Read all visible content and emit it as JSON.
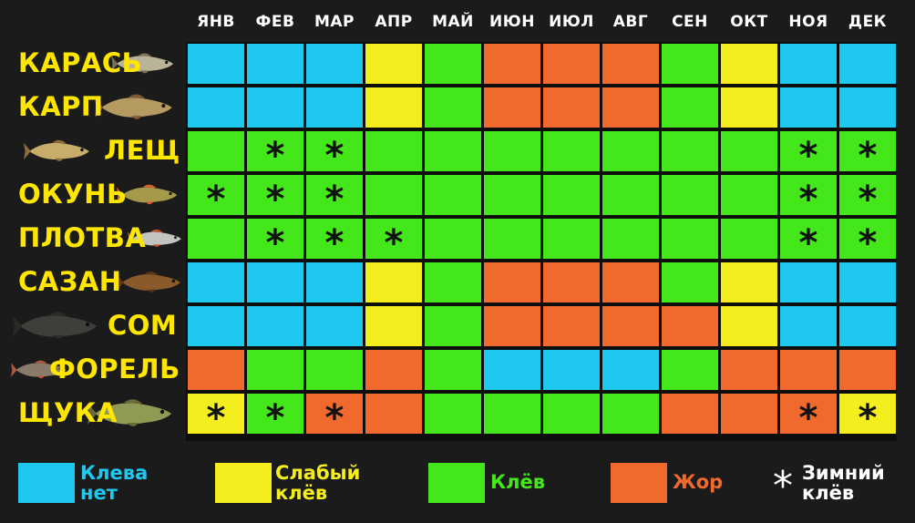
{
  "chart_data": {
    "type": "table",
    "title": "",
    "months": [
      "ЯНВ",
      "ФЕВ",
      "МАР",
      "АПР",
      "МАЙ",
      "ИЮН",
      "ИЮЛ",
      "АВГ",
      "СЕН",
      "ОКТ",
      "НОЯ",
      "ДЕК"
    ],
    "fish": [
      "КАРАСЬ",
      "КАРП",
      "ЛЕЩ",
      "ОКУНЬ",
      "ПЛОТВА",
      "САЗАН",
      "СОМ",
      "ФОРЕЛЬ",
      "ЩУКА"
    ],
    "status_codes": {
      "N": "Клева нет",
      "S": "Слабый клёв",
      "K": "Клёв",
      "Z": "Жор"
    },
    "grid": [
      [
        "N",
        "N",
        "N",
        "S",
        "K",
        "Z",
        "Z",
        "Z",
        "K",
        "S",
        "N",
        "N"
      ],
      [
        "N",
        "N",
        "N",
        "S",
        "K",
        "Z",
        "Z",
        "Z",
        "K",
        "S",
        "N",
        "N"
      ],
      [
        "K",
        "K",
        "K",
        "K",
        "K",
        "K",
        "K",
        "K",
        "K",
        "K",
        "K",
        "K"
      ],
      [
        "K",
        "K",
        "K",
        "K",
        "K",
        "K",
        "K",
        "K",
        "K",
        "K",
        "K",
        "K"
      ],
      [
        "K",
        "K",
        "K",
        "K",
        "K",
        "K",
        "K",
        "K",
        "K",
        "K",
        "K",
        "K"
      ],
      [
        "N",
        "N",
        "N",
        "S",
        "K",
        "Z",
        "Z",
        "Z",
        "K",
        "S",
        "N",
        "N"
      ],
      [
        "N",
        "N",
        "N",
        "S",
        "K",
        "Z",
        "Z",
        "Z",
        "Z",
        "S",
        "N",
        "N"
      ],
      [
        "Z",
        "K",
        "K",
        "Z",
        "K",
        "N",
        "N",
        "N",
        "K",
        "Z",
        "Z",
        "Z"
      ],
      [
        "S",
        "K",
        "Z",
        "Z",
        "K",
        "K",
        "K",
        "K",
        "Z",
        "Z",
        "Z",
        "S"
      ]
    ],
    "winter": [
      [
        0,
        0,
        0,
        0,
        0,
        0,
        0,
        0,
        0,
        0,
        0,
        0
      ],
      [
        0,
        0,
        0,
        0,
        0,
        0,
        0,
        0,
        0,
        0,
        0,
        0
      ],
      [
        0,
        1,
        1,
        0,
        0,
        0,
        0,
        0,
        0,
        0,
        1,
        1
      ],
      [
        1,
        1,
        1,
        0,
        0,
        0,
        0,
        0,
        0,
        0,
        1,
        1
      ],
      [
        0,
        1,
        1,
        1,
        0,
        0,
        0,
        0,
        0,
        0,
        1,
        1
      ],
      [
        0,
        0,
        0,
        0,
        0,
        0,
        0,
        0,
        0,
        0,
        0,
        0
      ],
      [
        0,
        0,
        0,
        0,
        0,
        0,
        0,
        0,
        0,
        0,
        0,
        0
      ],
      [
        0,
        0,
        0,
        0,
        0,
        0,
        0,
        0,
        0,
        0,
        0,
        0
      ],
      [
        1,
        1,
        1,
        0,
        0,
        0,
        0,
        0,
        0,
        0,
        1,
        1
      ]
    ],
    "colors": {
      "N": "#1fc8ee",
      "S": "#f4ee1e",
      "K": "#44e81a",
      "Z": "#ef6a2c"
    },
    "winter_symbol": "*"
  },
  "legend": [
    {
      "code": "N",
      "label": "Клева\nнет",
      "color": "#1fc8ee",
      "text_color": "#1fc8ee"
    },
    {
      "code": "S",
      "label": "Слабый\nклёв",
      "color": "#f4ee1e",
      "text_color": "#f4ee1e"
    },
    {
      "code": "K",
      "label": "Клёв",
      "color": "#44e81a",
      "text_color": "#44e81a"
    },
    {
      "code": "Z",
      "label": "Жор",
      "color": "#ef6a2c",
      "text_color": "#ef6a2c"
    }
  ],
  "legend_winter": {
    "symbol": "*",
    "label": "Зимний\nклёв",
    "text_color": "#ffffff"
  },
  "fish_icons": [
    "crucian-carp-icon",
    "carp-icon",
    "bream-icon",
    "perch-icon",
    "roach-icon",
    "sazan-icon",
    "catfish-icon",
    "trout-icon",
    "pike-icon"
  ]
}
